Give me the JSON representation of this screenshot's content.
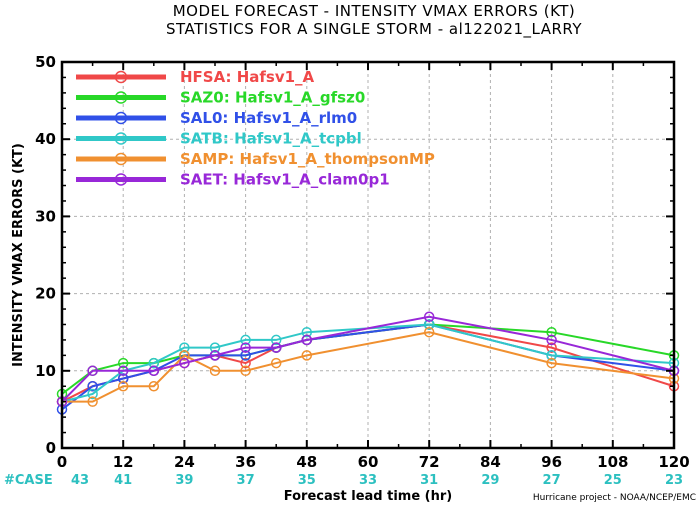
{
  "chart_data": {
    "type": "line",
    "title": "MODEL FORECAST - INTENSITY VMAX ERRORS (KT)",
    "subtitle": "STATISTICS FOR A SINGLE STORM - al122021_LARRY",
    "xlabel": "Forecast lead time (hr)",
    "ylabel": "INTENSITY VMAX ERRORS (KT)",
    "xlim": [
      0,
      120
    ],
    "ylim": [
      0,
      50
    ],
    "xticks": [
      0,
      12,
      24,
      36,
      48,
      60,
      72,
      84,
      96,
      108,
      120
    ],
    "yticks": [
      0,
      10,
      20,
      30,
      40,
      50
    ],
    "grid": true,
    "legend": "top-left",
    "x": [
      0,
      6,
      12,
      18,
      24,
      30,
      36,
      42,
      48,
      72,
      96,
      120
    ],
    "series": [
      {
        "name": "HFSA:  Hafsv1_A",
        "color": "#f04848",
        "values": [
          6,
          8,
          9,
          10,
          11,
          12,
          11,
          13,
          14,
          16,
          13,
          8
        ]
      },
      {
        "name": "SAZ0:  Hafsv1_A_gfsz0",
        "color": "#28d828",
        "values": [
          7,
          10,
          11,
          11,
          12,
          12,
          12,
          13,
          14,
          16,
          15,
          12
        ]
      },
      {
        "name": "SAL0:  Hafsv1_A_rlm0",
        "color": "#3050e8",
        "values": [
          5,
          8,
          9,
          10,
          12,
          12,
          12,
          13,
          14,
          16,
          12,
          10
        ]
      },
      {
        "name": "SATB:  Hafsv1_A_tcpbl",
        "color": "#30c8c8",
        "values": [
          6,
          7,
          10,
          11,
          13,
          13,
          14,
          14,
          15,
          16,
          12,
          11
        ]
      },
      {
        "name": "SAMP:  Hafsv1_A_thompsonMP",
        "color": "#f09030",
        "values": [
          6,
          6,
          8,
          8,
          12,
          10,
          10,
          11,
          12,
          15,
          11,
          9
        ]
      },
      {
        "name": "SAET:  Hafsv1_A_clam0p1",
        "color": "#9828d8",
        "values": [
          6,
          10,
          10,
          10,
          11,
          12,
          13,
          13,
          14,
          17,
          14,
          10
        ]
      }
    ],
    "case_label": "#CASE",
    "case_counts": [
      43,
      41,
      39,
      37,
      35,
      33,
      31,
      29,
      27,
      25,
      23
    ],
    "credit": "Hurricane project - NOAA/NCEP/EMC"
  }
}
